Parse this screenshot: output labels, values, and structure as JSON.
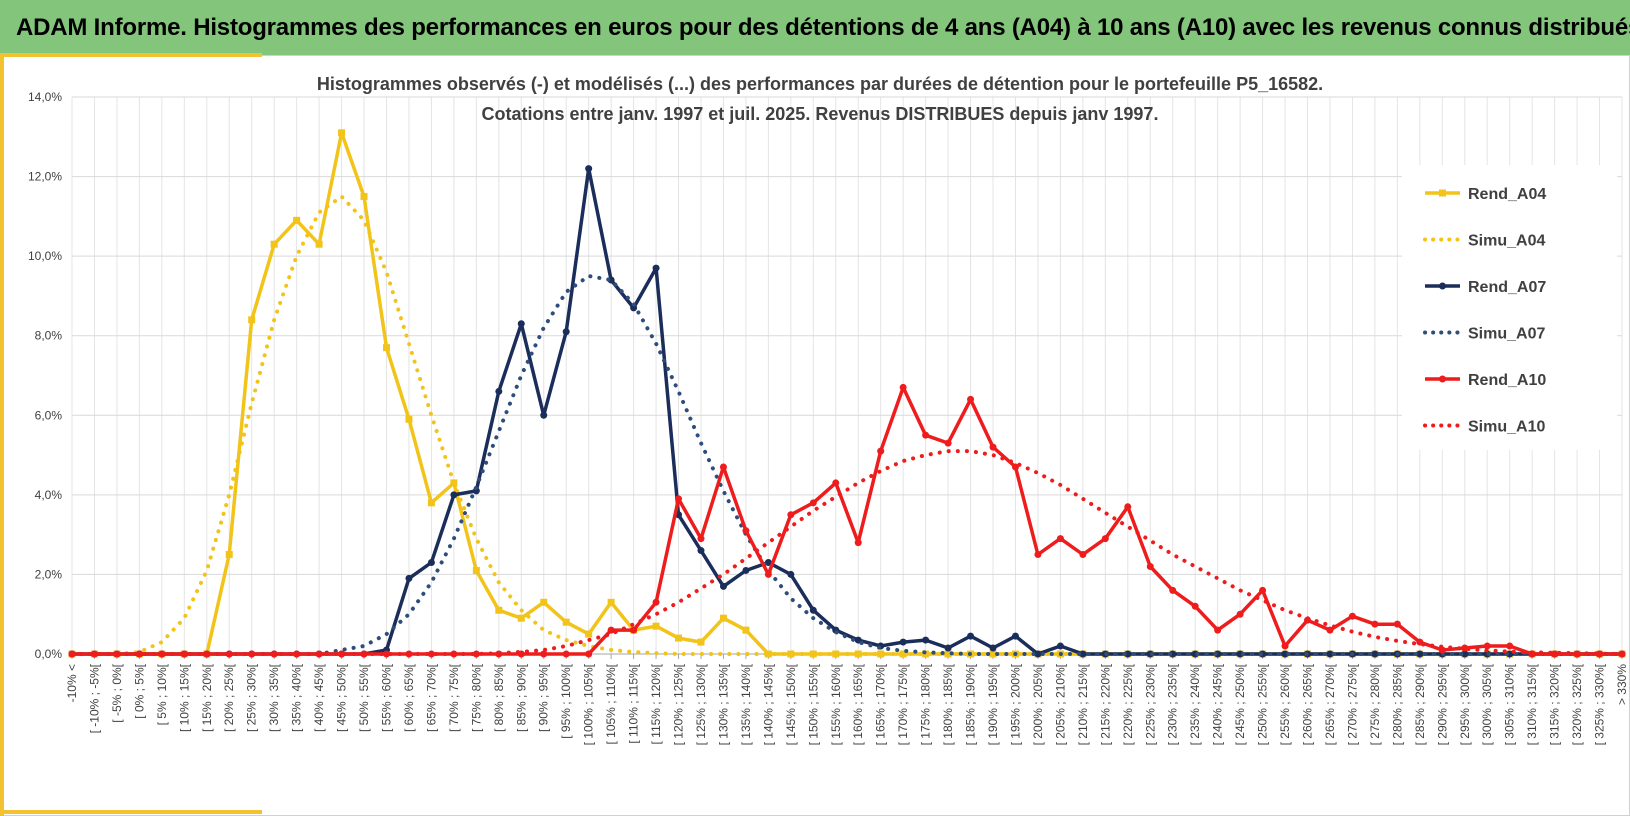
{
  "header": {
    "title": "ADAM Informe. Histogrammes des performances en euros pour des détentions de 4 ans (A04) à 10 ans (A10) avec les revenus connus distribués"
  },
  "chart_data": {
    "type": "line",
    "title": "Histogrammes observés (-) et modélisés (...) des performances par durées de détention pour le portefeuille P5_16582.",
    "subtitle": "Cotations entre janv. 1997 et juil. 2025. Revenus DISTRIBUES depuis janv 1997.",
    "xlabel": "",
    "ylabel": "",
    "ylim": [
      0,
      14
    ],
    "yticks": [
      "0,0%",
      "2,0%",
      "4,0%",
      "6,0%",
      "8,0%",
      "10,0%",
      "12,0%",
      "14,0%"
    ],
    "grid": true,
    "legend_position": "right",
    "categories": [
      "-10% <",
      "[ -10% ; -5%[",
      "[ -5% ; 0%[",
      "[ 0% ; 5%[",
      "[ 5% ; 10%[",
      "[ 10% ; 15%[",
      "[ 15% ; 20%[",
      "[ 20% ; 25%[",
      "[ 25% ; 30%[",
      "[ 30% ; 35%[",
      "[ 35% ; 40%[",
      "[ 40% ; 45%[",
      "[ 45% ; 50%[",
      "[ 50% ; 55%[",
      "[ 55% ; 60%[",
      "[ 60% ; 65%[",
      "[ 65% ; 70%[",
      "[ 70% ; 75%[",
      "[ 75% ; 80%[",
      "[ 80% ; 85%[",
      "[ 85% ; 90%[",
      "[ 90% ; 95%[",
      "[ 95% ; 100%[",
      "[ 100% ; 105%[",
      "[ 105% ; 110%[",
      "[ 110% ; 115%[",
      "[ 115% ; 120%[",
      "[ 120% ; 125%[",
      "[ 125% ; 130%[",
      "[ 130% ; 135%[",
      "[ 135% ; 140%[",
      "[ 140% ; 145%[",
      "[ 145% ; 150%[",
      "[ 150% ; 155%[",
      "[ 155% ; 160%[",
      "[ 160% ; 165%[",
      "[ 165% ; 170%[",
      "[ 170% ; 175%[",
      "[ 175% ; 180%[",
      "[ 180% ; 185%[",
      "[ 185% ; 190%[",
      "[ 190% ; 195%[",
      "[ 195% ; 200%[",
      "[ 200% ; 205%[",
      "[ 205% ; 210%[",
      "[ 210% ; 215%[",
      "[ 215% ; 220%[",
      "[ 220% ; 225%[",
      "[ 225% ; 230%[",
      "[ 230% ; 235%[",
      "[ 235% ; 240%[",
      "[ 240% ; 245%[",
      "[ 245% ; 250%[",
      "[ 250% ; 255%[",
      "[ 255% ; 260%[",
      "[ 260% ; 265%[",
      "[ 265% ; 270%[",
      "[ 270% ; 275%[",
      "[ 275% ; 280%[",
      "[ 280% ; 285%[",
      "[ 285% ; 290%[",
      "[ 290% ; 295%[",
      "[ 295% ; 300%[",
      "[ 300% ; 305%[",
      "[ 305% ; 310%[",
      "[ 310% ; 315%[",
      "[ 315% ; 320%[",
      "[ 320% ; 325%[",
      "[ 325% ; 330%[",
      "> 330%"
    ],
    "series": [
      {
        "name": "Rend_A04",
        "color": "#f2c318",
        "style": "solid",
        "marker": "square",
        "values": [
          0,
          0,
          0,
          0,
          0,
          0,
          0,
          2.5,
          8.4,
          10.3,
          10.9,
          10.3,
          13.1,
          11.5,
          7.7,
          5.9,
          3.8,
          4.3,
          2.1,
          1.1,
          0.9,
          1.3,
          0.8,
          0.5,
          1.3,
          0.6,
          0.7,
          0.4,
          0.3,
          0.9,
          0.6,
          0,
          0,
          0,
          0,
          0,
          0,
          0,
          0,
          0,
          0,
          0,
          0,
          0,
          0,
          0,
          0,
          0,
          0,
          0,
          0,
          0,
          0,
          0,
          0,
          0,
          0,
          0,
          0,
          0,
          0,
          0,
          0,
          0,
          0,
          0,
          0,
          0,
          0,
          0
        ]
      },
      {
        "name": "Simu_A04",
        "color": "#f2c318",
        "style": "dotted",
        "values": [
          0,
          0,
          0,
          0.05,
          0.3,
          0.9,
          2.1,
          4.0,
          6.3,
          8.4,
          10.0,
          11.1,
          11.5,
          10.9,
          9.6,
          7.8,
          6.0,
          4.3,
          2.9,
          1.8,
          1.1,
          0.6,
          0.35,
          0.2,
          0.1,
          0.05,
          0.02,
          0,
          0,
          0,
          0,
          0,
          0,
          0,
          0,
          0,
          0,
          0,
          0,
          0,
          0,
          0,
          0,
          0,
          0,
          0,
          0,
          0,
          0,
          0,
          0,
          0,
          0,
          0,
          0,
          0,
          0,
          0,
          0,
          0,
          0,
          0,
          0,
          0,
          0,
          0,
          0,
          0,
          0,
          0
        ]
      },
      {
        "name": "Rend_A07",
        "color": "#1b2d5a",
        "style": "solid",
        "marker": "circle",
        "values": [
          0,
          0,
          0,
          0,
          0,
          0,
          0,
          0,
          0,
          0,
          0,
          0,
          0,
          0,
          0.1,
          1.9,
          2.3,
          4.0,
          4.1,
          6.6,
          8.3,
          6.0,
          8.1,
          12.2,
          9.4,
          8.7,
          9.7,
          3.5,
          2.6,
          1.7,
          2.1,
          2.3,
          2.0,
          1.1,
          0.6,
          0.35,
          0.2,
          0.3,
          0.35,
          0.15,
          0.45,
          0.15,
          0.45,
          0,
          0.2,
          0,
          0,
          0,
          0,
          0,
          0,
          0,
          0,
          0,
          0,
          0,
          0,
          0,
          0,
          0,
          0,
          0,
          0,
          0,
          0,
          0,
          0,
          0,
          0,
          0
        ]
      },
      {
        "name": "Simu_A07",
        "color": "#2e4d7b",
        "style": "dotted",
        "values": [
          0,
          0,
          0,
          0,
          0,
          0,
          0,
          0,
          0,
          0,
          0,
          0,
          0.1,
          0.2,
          0.5,
          1.0,
          1.8,
          2.9,
          4.2,
          5.6,
          7.0,
          8.2,
          9.1,
          9.5,
          9.4,
          8.8,
          7.8,
          6.6,
          5.3,
          4.1,
          3.0,
          2.1,
          1.4,
          0.9,
          0.55,
          0.3,
          0.15,
          0.08,
          0.04,
          0.02,
          0,
          0,
          0,
          0,
          0,
          0,
          0,
          0,
          0,
          0,
          0,
          0,
          0,
          0,
          0,
          0,
          0,
          0,
          0,
          0,
          0,
          0,
          0,
          0,
          0,
          0,
          0,
          0,
          0,
          0
        ]
      },
      {
        "name": "Rend_A10",
        "color": "#ee1c1c",
        "style": "solid",
        "marker": "circle",
        "values": [
          0,
          0,
          0,
          0,
          0,
          0,
          0,
          0,
          0,
          0,
          0,
          0,
          0,
          0,
          0,
          0,
          0,
          0,
          0,
          0,
          0,
          0,
          0,
          0,
          0.6,
          0.6,
          1.3,
          3.9,
          2.9,
          4.7,
          3.1,
          2.0,
          3.5,
          3.8,
          4.3,
          2.8,
          5.1,
          6.7,
          5.5,
          5.3,
          6.4,
          5.2,
          4.7,
          2.5,
          2.9,
          2.5,
          2.9,
          3.7,
          2.2,
          1.6,
          1.2,
          0.6,
          1.0,
          1.6,
          0.2,
          0.85,
          0.6,
          0.95,
          0.75,
          0.75,
          0.3,
          0.1,
          0.15,
          0.2,
          0.2,
          0,
          0,
          0,
          0,
          0
        ]
      },
      {
        "name": "Simu_A10",
        "color": "#ee1c1c",
        "style": "dotted",
        "values": [
          0,
          0,
          0,
          0,
          0,
          0,
          0,
          0,
          0,
          0,
          0,
          0,
          0,
          0,
          0,
          0,
          0,
          0,
          0,
          0.02,
          0.05,
          0.1,
          0.2,
          0.35,
          0.5,
          0.75,
          1.0,
          1.3,
          1.65,
          2.0,
          2.4,
          2.8,
          3.2,
          3.6,
          3.95,
          4.3,
          4.6,
          4.85,
          5.0,
          5.1,
          5.1,
          5.0,
          4.8,
          4.55,
          4.25,
          3.9,
          3.55,
          3.2,
          2.85,
          2.5,
          2.2,
          1.9,
          1.6,
          1.35,
          1.1,
          0.9,
          0.72,
          0.56,
          0.43,
          0.33,
          0.25,
          0.18,
          0.13,
          0.09,
          0.06,
          0.04,
          0.03,
          0.02,
          0.01,
          0
        ]
      }
    ]
  }
}
